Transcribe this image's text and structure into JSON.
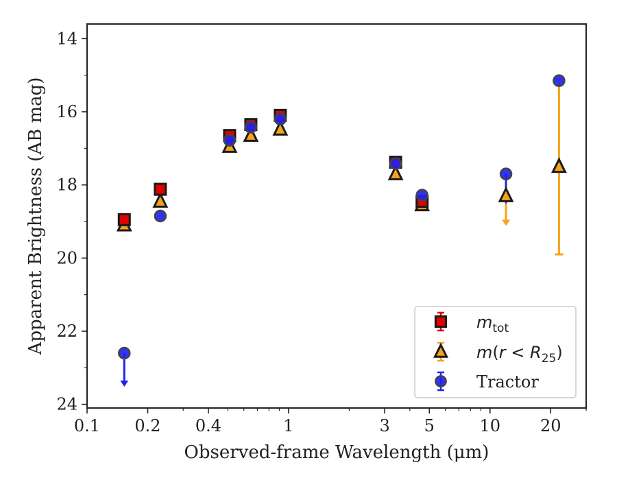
{
  "chart_data": {
    "type": "scatter",
    "title": "",
    "xlabel": "Observed-frame Wavelength (μm)",
    "ylabel": "Apparent Brightness (AB mag)",
    "xscale": "log",
    "xlim": [
      0.1,
      30
    ],
    "ylim": [
      24.1,
      13.6
    ],
    "y_inverted": true,
    "xticks": [
      0.1,
      0.2,
      0.4,
      1,
      3,
      5,
      10,
      20
    ],
    "xtick_labels": [
      "0.1",
      "0.2",
      "0.4",
      "1",
      "3",
      "5",
      "10",
      "20"
    ],
    "yticks": [
      14,
      16,
      18,
      20,
      22,
      24
    ],
    "ytick_labels": [
      "14",
      "16",
      "18",
      "20",
      "22",
      "24"
    ],
    "legend_position": "lower-right",
    "series": [
      {
        "name": "m_tot",
        "legend_label": "m_tot",
        "marker": "square",
        "color": "#e00000",
        "points": [
          {
            "x": 0.153,
            "y": 18.95
          },
          {
            "x": 0.231,
            "y": 18.12
          },
          {
            "x": 0.51,
            "y": 16.65
          },
          {
            "x": 0.65,
            "y": 16.35
          },
          {
            "x": 0.91,
            "y": 16.1
          },
          {
            "x": 3.4,
            "y": 17.38
          },
          {
            "x": 4.6,
            "y": 18.45
          }
        ]
      },
      {
        "name": "m(r<R25)",
        "legend_label": "m(r < R_25)",
        "marker": "triangle",
        "color": "#f5a31a",
        "points": [
          {
            "x": 0.153,
            "y": 19.1
          },
          {
            "x": 0.231,
            "y": 18.45
          },
          {
            "x": 0.51,
            "y": 16.95
          },
          {
            "x": 0.65,
            "y": 16.65
          },
          {
            "x": 0.91,
            "y": 16.48
          },
          {
            "x": 3.4,
            "y": 17.7
          },
          {
            "x": 4.6,
            "y": 18.55
          },
          {
            "x": 12.0,
            "y": 18.3,
            "upper_limit": true,
            "limit_to": 19.1
          },
          {
            "x": 22.0,
            "y": 17.5,
            "err_low": 15.1,
            "err_high": 19.9
          }
        ]
      },
      {
        "name": "Tractor",
        "legend_label": "Tractor",
        "marker": "circle",
        "color": "#2222ee",
        "points": [
          {
            "x": 0.153,
            "y": 22.6,
            "upper_limit": true,
            "limit_to": 23.5
          },
          {
            "x": 0.231,
            "y": 18.85
          },
          {
            "x": 0.51,
            "y": 16.78
          },
          {
            "x": 0.65,
            "y": 16.42
          },
          {
            "x": 0.91,
            "y": 16.2
          },
          {
            "x": 3.4,
            "y": 17.42
          },
          {
            "x": 4.6,
            "y": 18.28
          },
          {
            "x": 12.0,
            "y": 17.7,
            "upper_limit": true,
            "limit_to": 18.5
          },
          {
            "x": 22.0,
            "y": 15.15
          }
        ]
      }
    ]
  }
}
